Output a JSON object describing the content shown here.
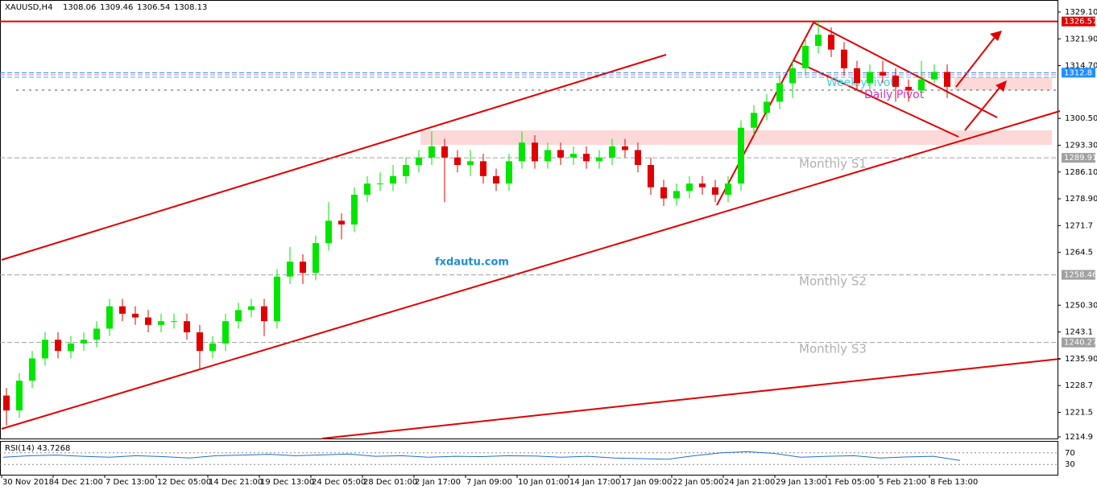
{
  "chart_data": {
    "type": "candlestick",
    "title": "XAUUSD,H4",
    "header_values": [
      1308.06,
      1309.46,
      1306.54,
      1308.13
    ],
    "categories": [
      "30 Nov 2018",
      "4 Dec 21:00",
      "7 Dec 13:00",
      "12 Dec 05:00",
      "14 Dec 21:00",
      "19 Dec 13:00",
      "24 Dec 05:00",
      "28 Dec 01:00",
      "2 Jan 17:00",
      "7 Jan 09:00",
      "10 Jan 01:00",
      "14 Jan 17:00",
      "17 Jan 09:00",
      "22 Jan 05:00",
      "24 Jan 21:00",
      "29 Jan 13:00",
      "1 Feb 05:00",
      "5 Feb 21:00",
      "8 Feb 13:00"
    ],
    "open": [
      1226,
      1222,
      1230,
      1236,
      1241,
      1238,
      1240,
      1241,
      1244,
      1250,
      1248,
      1247,
      1245,
      1246,
      1246,
      1243,
      1238,
      1240,
      1246,
      1249,
      1250,
      1246,
      1258,
      1262,
      1259,
      1267,
      1273,
      1272,
      1280,
      1283,
      1283,
      1285,
      1288,
      1290,
      1293,
      1290,
      1288,
      1289,
      1285,
      1283,
      1289,
      1294,
      1289,
      1292,
      1290,
      1291,
      1289,
      1290,
      1293,
      1292,
      1288,
      1282,
      1279,
      1281,
      1283,
      1282,
      1280,
      1283,
      1298,
      1302,
      1305,
      1310,
      1314,
      1320,
      1323,
      1319,
      1314,
      1310,
      1313,
      1312,
      1309,
      1308,
      1311,
      1313
    ],
    "high": [
      1228,
      1232,
      1238,
      1243,
      1243,
      1242,
      1243,
      1246,
      1252,
      1252,
      1250,
      1249,
      1248,
      1248,
      1248,
      1245,
      1242,
      1248,
      1251,
      1252,
      1252,
      1260,
      1266,
      1264,
      1269,
      1278,
      1275,
      1282,
      1285,
      1286,
      1288,
      1290,
      1292,
      1297,
      1295,
      1292,
      1292,
      1291,
      1287,
      1291,
      1297,
      1296,
      1294,
      1294,
      1293,
      1293,
      1292,
      1295,
      1295,
      1294,
      1290,
      1284,
      1283,
      1285,
      1285,
      1284,
      1285,
      1300,
      1304,
      1307,
      1312,
      1316,
      1322,
      1327,
      1325,
      1321,
      1316,
      1315,
      1316,
      1314,
      1311,
      1316,
      1315,
      1315
    ],
    "low": [
      1218,
      1220,
      1228,
      1234,
      1236,
      1236,
      1238,
      1239,
      1242,
      1246,
      1245,
      1243,
      1243,
      1244,
      1241,
      1233,
      1236,
      1238,
      1244,
      1247,
      1242,
      1244,
      1256,
      1256,
      1257,
      1265,
      1268,
      1270,
      1278,
      1281,
      1281,
      1283,
      1286,
      1288,
      1278,
      1286,
      1285,
      1283,
      1281,
      1281,
      1287,
      1287,
      1287,
      1288,
      1288,
      1287,
      1287,
      1288,
      1290,
      1286,
      1280,
      1277,
      1277,
      1279,
      1280,
      1278,
      1278,
      1281,
      1296,
      1300,
      1303,
      1306,
      1312,
      1318,
      1317,
      1312,
      1308,
      1308,
      1310,
      1305,
      1305,
      1306,
      1310,
      1306
    ],
    "close": [
      1222,
      1230,
      1236,
      1241,
      1238,
      1240,
      1241,
      1244,
      1250,
      1248,
      1247,
      1245,
      1246,
      1246,
      1243,
      1238,
      1240,
      1246,
      1249,
      1250,
      1246,
      1258,
      1262,
      1259,
      1267,
      1273,
      1272,
      1280,
      1283,
      1283,
      1285,
      1288,
      1290,
      1293,
      1290,
      1288,
      1289,
      1285,
      1283,
      1289,
      1294,
      1289,
      1292,
      1290,
      1291,
      1289,
      1290,
      1293,
      1292,
      1288,
      1282,
      1279,
      1281,
      1283,
      1282,
      1280,
      1283,
      1298,
      1302,
      1305,
      1310,
      1314,
      1320,
      1323,
      1319,
      1314,
      1310,
      1313,
      1312,
      1309,
      1308,
      1311,
      1313,
      1309
    ],
    "up_color": "#00e600",
    "down_color": "#e00000",
    "ylim": [
      1214.46,
      1332.34
    ],
    "yticks": [
      {
        "value": 1329.1,
        "label": "1329.10"
      },
      {
        "value": 1321.9,
        "label": "1321.90"
      },
      {
        "value": 1314.7,
        "label": "1314.70"
      },
      {
        "value": 1300.5,
        "label": "1300.50"
      },
      {
        "value": 1293.3,
        "label": "1293.30"
      },
      {
        "value": 1286.1,
        "label": "1286.10"
      },
      {
        "value": 1278.9,
        "label": "1278.90"
      },
      1271.7,
      1264.5,
      {
        "value": 1250.3,
        "label": "1250.30"
      },
      1243.1,
      {
        "value": 1235.9,
        "label": "1235.90"
      },
      1228.7,
      1221.5,
      1214.9
    ],
    "levels": [
      {
        "value": 1326.57,
        "color": "#e00000"
      },
      {
        "value": 1312.8,
        "color": "#1e90ff"
      },
      {
        "value": 1289.91,
        "color": "#a0a0a0"
      },
      {
        "value": 1258.46,
        "color": "#a0a0a0"
      },
      {
        "value": 1240.27,
        "color": "#a0a0a0"
      }
    ],
    "pivot_labels": [
      "WeeklyPivot",
      "Daily Pivot",
      "Monthly S1",
      "Monthly S2",
      "Monthly S3"
    ],
    "watermark": "fxdautu.com",
    "rsi": {
      "title": "RSI(14) 43.7268",
      "color": "#1e6fd0",
      "ylim": [
        0,
        100
      ],
      "yticks": [
        70,
        30
      ],
      "values": [
        55,
        60,
        62,
        58,
        55,
        60,
        57,
        52,
        60,
        62,
        65,
        60,
        63,
        66,
        58,
        60,
        55,
        58,
        57,
        60,
        59,
        55,
        58,
        52,
        50,
        48,
        60,
        70,
        74,
        68,
        55,
        58,
        60,
        52,
        56,
        58,
        43.7268
      ]
    }
  }
}
